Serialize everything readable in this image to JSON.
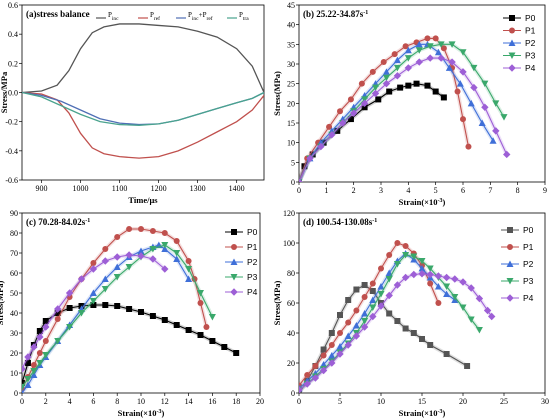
{
  "chart_data": [
    {
      "id": "a",
      "type": "line",
      "title": "(a)stress balance",
      "xlabel": "Time/μs",
      "ylabel": "Stress/MPa",
      "xlim": [
        850,
        1470
      ],
      "ylim": [
        -0.6,
        0.6
      ],
      "xticks": [
        900,
        1000,
        1100,
        1200,
        1300,
        1400
      ],
      "yticks": [
        -0.6,
        -0.4,
        -0.2,
        0.0,
        0.2,
        0.4,
        0.6
      ],
      "ytick_labels": [
        "-0.6",
        "-0.4",
        "-0.2",
        "0.0",
        "0.2",
        "0.4",
        "0.6"
      ],
      "legend_position": "top",
      "series": [
        {
          "name": "P",
          "sub": "inc",
          "color": "#555555",
          "markers": false,
          "x": [
            850,
            900,
            940,
            970,
            1000,
            1030,
            1060,
            1100,
            1150,
            1200,
            1250,
            1300,
            1350,
            1400,
            1440,
            1470
          ],
          "y": [
            0.0,
            0.01,
            0.05,
            0.15,
            0.3,
            0.41,
            0.45,
            0.47,
            0.47,
            0.46,
            0.45,
            0.42,
            0.38,
            0.3,
            0.18,
            0.0
          ]
        },
        {
          "name": "P",
          "sub": "ref",
          "color": "#c0504d",
          "markers": false,
          "x": [
            850,
            900,
            940,
            970,
            1000,
            1030,
            1060,
            1100,
            1150,
            1200,
            1250,
            1300,
            1350,
            1400,
            1440,
            1470
          ],
          "y": [
            0.0,
            -0.01,
            -0.05,
            -0.14,
            -0.28,
            -0.38,
            -0.42,
            -0.44,
            -0.45,
            -0.44,
            -0.4,
            -0.34,
            -0.27,
            -0.2,
            -0.12,
            -0.02
          ]
        },
        {
          "name": "P",
          "sub": "inc",
          "name2": "+P",
          "sub2": "ref",
          "color": "#4f6fb5",
          "markers": false,
          "x": [
            850,
            900,
            950,
            1000,
            1050,
            1100,
            1150,
            1200,
            1250,
            1300,
            1350,
            1400,
            1440,
            1470
          ],
          "y": [
            0.0,
            -0.02,
            -0.06,
            -0.12,
            -0.18,
            -0.21,
            -0.22,
            -0.215,
            -0.19,
            -0.15,
            -0.11,
            -0.07,
            -0.04,
            0.0
          ]
        },
        {
          "name": "P",
          "sub": "tra",
          "color": "#4aa38e",
          "markers": false,
          "x": [
            850,
            900,
            950,
            1000,
            1050,
            1100,
            1150,
            1200,
            1250,
            1300,
            1350,
            1400,
            1440,
            1470
          ],
          "y": [
            0.0,
            -0.03,
            -0.09,
            -0.15,
            -0.2,
            -0.22,
            -0.225,
            -0.215,
            -0.19,
            -0.15,
            -0.11,
            -0.07,
            -0.04,
            0.0
          ]
        }
      ]
    },
    {
      "id": "b",
      "type": "line",
      "title": "(b) 25.22-34.87s",
      "title_sup": "-1",
      "xlabel": "Strain(×10",
      "xlabel_sup": "-3",
      "xlabel_end": ")",
      "ylabel": "Stress(MPa)",
      "xlim": [
        0,
        9
      ],
      "ylim": [
        0,
        45
      ],
      "xticks": [
        0,
        1,
        2,
        3,
        4,
        5,
        6,
        7,
        8,
        9
      ],
      "yticks": [
        0,
        5,
        10,
        15,
        20,
        25,
        30,
        35,
        40,
        45
      ],
      "legend_position": "top-right",
      "series": [
        {
          "name": "P0",
          "color": "#000000",
          "marker": "square",
          "x": [
            0,
            0.2,
            0.5,
            0.9,
            1.4,
            1.9,
            2.4,
            2.9,
            3.3,
            3.7,
            4.0,
            4.3,
            4.7,
            5.0,
            5.3
          ],
          "y": [
            0,
            4,
            7,
            10,
            13,
            16,
            19,
            21,
            23,
            24,
            24.5,
            25,
            24.5,
            23,
            21.5
          ]
        },
        {
          "name": "P1",
          "color": "#c0504d",
          "marker": "circle",
          "x": [
            0,
            0.3,
            0.7,
            1.1,
            1.5,
            1.9,
            2.3,
            2.7,
            3.1,
            3.5,
            3.9,
            4.3,
            4.7,
            5.0,
            5.3,
            5.6,
            5.8,
            6.0,
            6.2
          ],
          "y": [
            0,
            6,
            10,
            14,
            18,
            21,
            25,
            28,
            30.5,
            32.5,
            34.5,
            35.5,
            36.5,
            36.5,
            34,
            29,
            23,
            16,
            9
          ]
        },
        {
          "name": "P2",
          "color": "#3f6fd8",
          "marker": "triangle-up",
          "x": [
            0,
            0.4,
            0.8,
            1.2,
            1.6,
            2.0,
            2.4,
            2.8,
            3.2,
            3.6,
            4.0,
            4.4,
            4.7,
            5.1,
            5.5,
            5.9,
            6.3,
            6.7,
            7.1
          ],
          "y": [
            0,
            6,
            10,
            13,
            16,
            19,
            22,
            25,
            28,
            31,
            33.5,
            35,
            35,
            33,
            29,
            25,
            20,
            15,
            10.5
          ]
        },
        {
          "name": "P3",
          "color": "#3aa86b",
          "marker": "triangle-down",
          "x": [
            0,
            0.4,
            0.8,
            1.2,
            1.6,
            2.0,
            2.4,
            2.8,
            3.2,
            3.6,
            4.0,
            4.4,
            4.8,
            5.2,
            5.6,
            6.0,
            6.4,
            6.8,
            7.2,
            7.5
          ],
          "y": [
            0,
            6,
            9,
            12,
            15,
            18,
            21,
            24,
            26.5,
            29,
            31.5,
            33.5,
            34.5,
            35,
            35,
            33,
            29,
            25,
            20,
            16.5
          ]
        },
        {
          "name": "P4",
          "color": "#9d5fd6",
          "marker": "diamond",
          "x": [
            0,
            0.4,
            0.8,
            1.2,
            1.6,
            2.0,
            2.4,
            2.8,
            3.2,
            3.6,
            4.0,
            4.4,
            4.8,
            5.2,
            5.6,
            6.0,
            6.4,
            6.8,
            7.2,
            7.6
          ],
          "y": [
            0,
            6,
            9,
            12,
            15,
            17.5,
            20,
            22.5,
            25,
            27,
            29,
            30.5,
            31.5,
            31.5,
            30.5,
            28,
            24,
            19,
            13,
            7
          ]
        }
      ]
    },
    {
      "id": "c",
      "type": "line",
      "title": "(c) 70.28-84.02s",
      "title_sup": "-1",
      "xlabel": "Strain(×10",
      "xlabel_sup": "-3",
      "xlabel_end": ")",
      "ylabel": "Stress(MPa)",
      "xlim": [
        0,
        20
      ],
      "ylim": [
        0,
        90
      ],
      "xticks": [
        0,
        2,
        4,
        6,
        8,
        10,
        12,
        14,
        16,
        18,
        20
      ],
      "yticks": [
        0,
        10,
        20,
        30,
        40,
        50,
        60,
        70,
        80,
        90
      ],
      "legend_position": "right",
      "series": [
        {
          "name": "P0",
          "color": "#000000",
          "marker": "square",
          "x": [
            0,
            0.5,
            1,
            1.5,
            2,
            3,
            4,
            5,
            6,
            7,
            8,
            9,
            10,
            11,
            12,
            13,
            14,
            15,
            16,
            17,
            18
          ],
          "y": [
            5,
            15,
            24,
            31,
            36,
            40,
            42.5,
            43.5,
            44,
            44,
            43.5,
            42,
            40.5,
            38.5,
            36.5,
            34,
            31.5,
            29,
            26,
            23,
            20
          ]
        },
        {
          "name": "P1",
          "color": "#c0504d",
          "marker": "circle",
          "x": [
            0,
            0.5,
            1,
            1.5,
            2,
            3,
            4,
            5,
            6,
            7,
            8,
            9,
            10,
            11,
            12,
            13,
            14,
            14.5,
            15,
            15.5
          ],
          "y": [
            2,
            8,
            14,
            20,
            26,
            37,
            48,
            57,
            65,
            72,
            78,
            82,
            82,
            81,
            80,
            76,
            66,
            57,
            45,
            33
          ]
        },
        {
          "name": "P2",
          "color": "#3f6fd8",
          "marker": "triangle-up",
          "x": [
            0,
            0.5,
            1,
            1.5,
            2,
            3,
            4,
            5,
            6,
            7,
            8,
            9,
            10,
            11,
            11.5,
            12,
            13,
            14
          ],
          "y": [
            0,
            4,
            9,
            14,
            18,
            26,
            34,
            42,
            50,
            57,
            63,
            68,
            71,
            73,
            74,
            72,
            67,
            57
          ]
        },
        {
          "name": "P3",
          "color": "#3aa86b",
          "marker": "triangle-down",
          "x": [
            0,
            0.5,
            1,
            1.5,
            2,
            3,
            4,
            5,
            6,
            7,
            8,
            9,
            10,
            11,
            12,
            13,
            14,
            15,
            16
          ],
          "y": [
            3,
            7,
            11,
            15,
            19,
            26,
            33,
            40,
            46,
            52,
            58,
            63,
            68,
            72,
            74,
            70,
            62,
            50,
            38
          ]
        },
        {
          "name": "P4",
          "color": "#9d5fd6",
          "marker": "diamond",
          "x": [
            0,
            0.5,
            1,
            1.5,
            2,
            3,
            4,
            5,
            6,
            7,
            8,
            9,
            10,
            11,
            12
          ],
          "y": [
            12,
            18,
            23,
            28,
            33,
            42,
            50,
            57,
            62,
            66,
            68,
            69,
            68.5,
            67,
            62
          ]
        }
      ]
    },
    {
      "id": "d",
      "type": "line",
      "title": "(d) 100.54-130.08s",
      "title_sup": "-1",
      "xlabel": "Strain(×10",
      "xlabel_sup": "-3",
      "xlabel_end": ")",
      "ylabel": "Stress(MPa)",
      "xlim": [
        0,
        30
      ],
      "ylim": [
        0,
        120
      ],
      "xticks": [
        0,
        5,
        10,
        15,
        20,
        25,
        30
      ],
      "yticks": [
        0,
        20,
        40,
        60,
        80,
        100,
        120
      ],
      "legend_position": "top-right",
      "series": [
        {
          "name": "P0",
          "color": "#555555",
          "marker": "square",
          "x": [
            0,
            1,
            2,
            3,
            4,
            5,
            6,
            7,
            8,
            9,
            10,
            11,
            12,
            13,
            14,
            15,
            16,
            18,
            20.5
          ],
          "y": [
            0,
            8,
            18,
            29,
            40,
            52,
            62,
            69,
            72,
            68,
            60,
            53,
            48,
            43,
            40,
            36,
            32,
            26,
            18
          ]
        },
        {
          "name": "P1",
          "color": "#c0504d",
          "marker": "circle",
          "x": [
            0,
            1,
            2,
            3,
            4,
            5,
            6,
            7,
            8,
            9,
            10,
            11,
            12,
            13,
            14,
            15,
            16,
            17
          ],
          "y": [
            5,
            12,
            18,
            25,
            32,
            40,
            47,
            55,
            64,
            73,
            83,
            92,
            100,
            98,
            93,
            85,
            73,
            60
          ]
        },
        {
          "name": "P2",
          "color": "#3f6fd8",
          "marker": "triangle-up",
          "x": [
            0,
            1,
            2,
            3,
            4,
            5,
            6,
            7,
            8,
            9,
            10,
            11,
            12,
            13,
            14,
            15,
            16,
            17,
            18,
            19
          ],
          "y": [
            3,
            8,
            13,
            19,
            25,
            31,
            38,
            45,
            53,
            62,
            71,
            80,
            88,
            93,
            89,
            83,
            77,
            71,
            66,
            62
          ]
        },
        {
          "name": "P3",
          "color": "#3aa86b",
          "marker": "triangle-down",
          "x": [
            0,
            1,
            2,
            3,
            4,
            5,
            6,
            7,
            8,
            9,
            10,
            11,
            12,
            13,
            14,
            15,
            16,
            17,
            18,
            19,
            20,
            21,
            22
          ],
          "y": [
            2,
            6,
            11,
            16,
            21,
            27,
            33,
            40,
            48,
            57,
            66,
            76,
            86,
            92,
            91,
            88,
            83,
            77,
            71,
            64,
            57,
            49,
            42
          ]
        },
        {
          "name": "P4",
          "color": "#9d5fd6",
          "marker": "diamond",
          "x": [
            0,
            1,
            2,
            3,
            4,
            5,
            6,
            7,
            8,
            9,
            10,
            11,
            12,
            13,
            14,
            15,
            16,
            17,
            18,
            19,
            20,
            21,
            22,
            23,
            23.5
          ],
          "y": [
            2,
            6,
            10,
            15,
            20,
            26,
            32,
            38,
            44,
            51,
            58,
            65,
            72,
            77,
            79,
            79.5,
            79,
            78,
            77,
            76,
            74,
            70,
            63,
            55,
            51
          ]
        }
      ]
    }
  ]
}
